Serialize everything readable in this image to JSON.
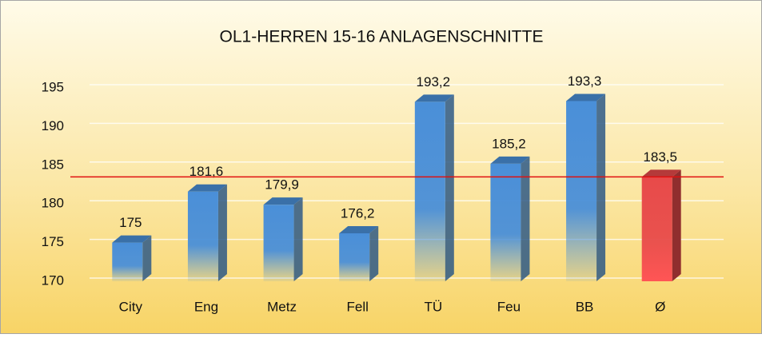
{
  "chart_data": {
    "type": "bar3d",
    "title": "OL1-HERREN 15-16  ANLAGENSCHNITTE",
    "categories": [
      "City",
      "Eng",
      "Metz",
      "Fell",
      "TÜ",
      "Feu",
      "BB",
      "Ø"
    ],
    "values": [
      175,
      181.6,
      179.9,
      176.2,
      193.2,
      185.2,
      193.3,
      183.5
    ],
    "value_labels": [
      "175",
      "181,6",
      "179,9",
      "176,2",
      "193,2",
      "185,2",
      "193,3",
      "183,5"
    ],
    "colors": [
      "#4a8fd8",
      "#4a8fd8",
      "#4a8fd8",
      "#4a8fd8",
      "#4a8fd8",
      "#4a8fd8",
      "#4a8fd8",
      "#e84a4a"
    ],
    "ylim": [
      170,
      195
    ],
    "yticks": [
      170,
      175,
      180,
      185,
      190,
      195
    ],
    "grid": true
  }
}
